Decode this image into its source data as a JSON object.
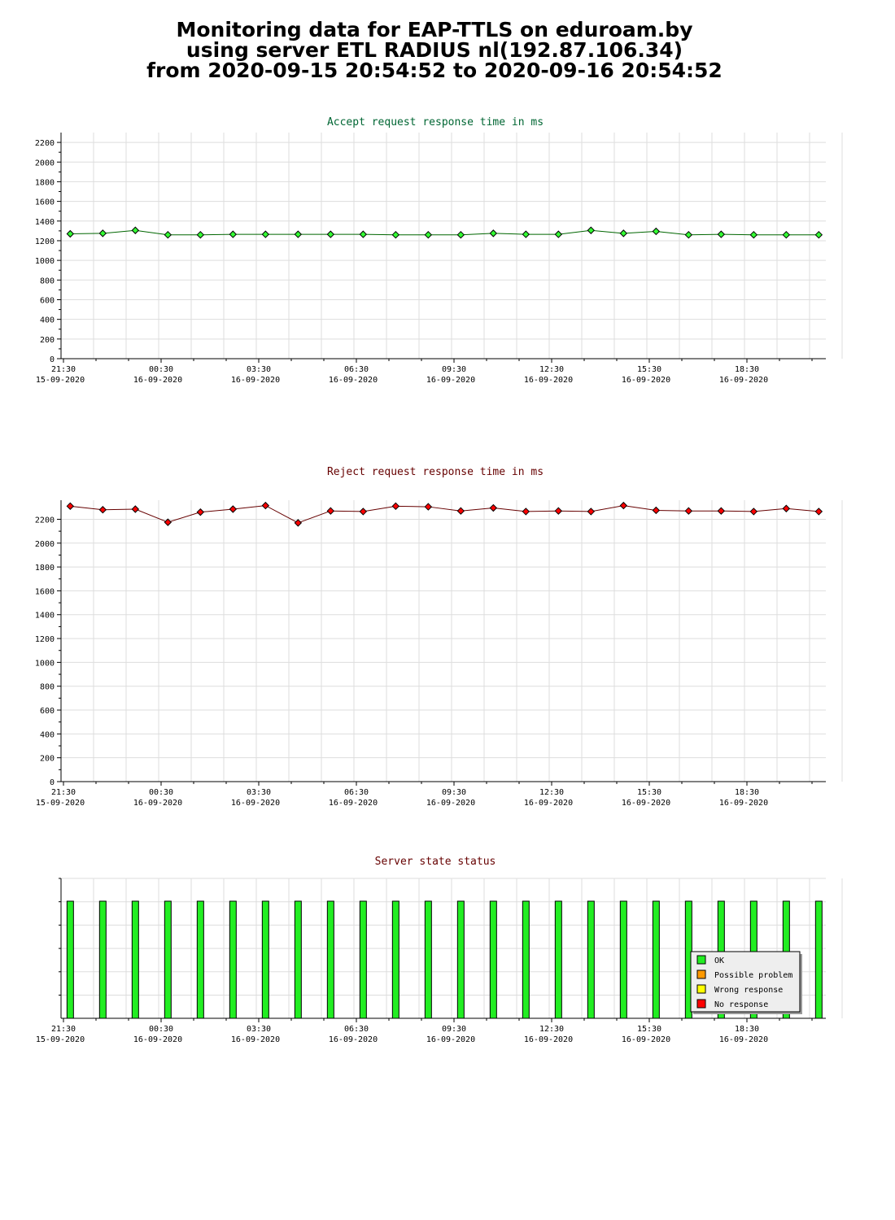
{
  "page": {
    "title_lines": [
      "Monitoring data for EAP-TTLS on eduroam.by",
      "using server ETL RADIUS nl(192.87.106.34)",
      "from 2020-09-15 20:54:52 to 2020-09-16 20:54:52"
    ]
  },
  "colors": {
    "accept_line": "#006600",
    "accept_marker": "#33ff33",
    "reject_line": "#660000",
    "reject_marker": "#ff0000",
    "grid": "#dddddd",
    "ok": "#22ee22",
    "possible_problem": "#ff9900",
    "wrong_response": "#ffff00",
    "no_response": "#ff0000",
    "accept_title": "#006633",
    "reject_title": "#660000",
    "status_title": "#660000"
  },
  "chart_data": [
    {
      "type": "line",
      "title": "Accept request response time in ms",
      "ylim": [
        0,
        2300
      ],
      "y_ticks": [
        0,
        200,
        400,
        600,
        800,
        1000,
        1200,
        1400,
        1600,
        1800,
        2000,
        2200
      ],
      "x_tick_labels": [
        {
          "time": "21:30",
          "date": "15-09-2020"
        },
        {
          "time": "00:30",
          "date": "16-09-2020"
        },
        {
          "time": "03:30",
          "date": "16-09-2020"
        },
        {
          "time": "06:30",
          "date": "16-09-2020"
        },
        {
          "time": "09:30",
          "date": "16-09-2020"
        },
        {
          "time": "12:30",
          "date": "16-09-2020"
        },
        {
          "time": "15:30",
          "date": "16-09-2020"
        },
        {
          "time": "18:30",
          "date": "16-09-2020"
        }
      ],
      "x": [
        "21:35",
        "22:35",
        "23:35",
        "00:35",
        "01:35",
        "02:35",
        "03:35",
        "04:35",
        "05:35",
        "06:35",
        "07:35",
        "08:35",
        "09:35",
        "10:35",
        "11:35",
        "12:35",
        "13:35",
        "14:35",
        "15:35",
        "16:35",
        "17:35",
        "18:35",
        "19:35",
        "20:35"
      ],
      "values": [
        1270,
        1275,
        1305,
        1260,
        1260,
        1265,
        1265,
        1265,
        1265,
        1265,
        1260,
        1260,
        1260,
        1275,
        1265,
        1265,
        1305,
        1275,
        1295,
        1260,
        1265,
        1260,
        1260,
        1260
      ],
      "grid": true
    },
    {
      "type": "line",
      "title": "Reject request response time in ms",
      "ylim": [
        0,
        2360
      ],
      "y_ticks": [
        0,
        200,
        400,
        600,
        800,
        1000,
        1200,
        1400,
        1600,
        1800,
        2000,
        2200
      ],
      "x_tick_labels": [
        {
          "time": "21:30",
          "date": "15-09-2020"
        },
        {
          "time": "00:30",
          "date": "16-09-2020"
        },
        {
          "time": "03:30",
          "date": "16-09-2020"
        },
        {
          "time": "06:30",
          "date": "16-09-2020"
        },
        {
          "time": "09:30",
          "date": "16-09-2020"
        },
        {
          "time": "12:30",
          "date": "16-09-2020"
        },
        {
          "time": "15:30",
          "date": "16-09-2020"
        },
        {
          "time": "18:30",
          "date": "16-09-2020"
        }
      ],
      "x": [
        "21:35",
        "22:35",
        "23:35",
        "00:35",
        "01:35",
        "02:35",
        "03:35",
        "04:35",
        "05:35",
        "06:35",
        "07:35",
        "08:35",
        "09:35",
        "10:35",
        "11:35",
        "12:35",
        "13:35",
        "14:35",
        "15:35",
        "16:35",
        "17:35",
        "18:35",
        "19:35",
        "20:35"
      ],
      "values": [
        2310,
        2280,
        2285,
        2175,
        2260,
        2285,
        2315,
        2170,
        2270,
        2265,
        2310,
        2305,
        2270,
        2295,
        2265,
        2270,
        2265,
        2315,
        2275,
        2270,
        2270,
        2265,
        2290,
        2265
      ],
      "grid": true
    },
    {
      "type": "bar",
      "title": "Server state status",
      "x_tick_labels": [
        {
          "time": "21:30",
          "date": "15-09-2020"
        },
        {
          "time": "00:30",
          "date": "16-09-2020"
        },
        {
          "time": "03:30",
          "date": "16-09-2020"
        },
        {
          "time": "06:30",
          "date": "16-09-2020"
        },
        {
          "time": "09:30",
          "date": "16-09-2020"
        },
        {
          "time": "12:30",
          "date": "16-09-2020"
        },
        {
          "time": "15:30",
          "date": "16-09-2020"
        },
        {
          "time": "18:30",
          "date": "16-09-2020"
        }
      ],
      "x": [
        "21:35",
        "22:35",
        "23:35",
        "00:35",
        "01:35",
        "02:35",
        "03:35",
        "04:35",
        "05:35",
        "06:35",
        "07:35",
        "08:35",
        "09:35",
        "10:35",
        "11:35",
        "12:35",
        "13:35",
        "14:35",
        "15:35",
        "16:35",
        "17:35",
        "18:35",
        "19:35",
        "20:35"
      ],
      "status": [
        "OK",
        "OK",
        "OK",
        "OK",
        "OK",
        "OK",
        "OK",
        "OK",
        "OK",
        "OK",
        "OK",
        "OK",
        "OK",
        "OK",
        "OK",
        "OK",
        "OK",
        "OK",
        "OK",
        "OK",
        "OK",
        "OK",
        "OK",
        "OK"
      ],
      "legend": [
        {
          "label": "OK",
          "color": "#22ee22"
        },
        {
          "label": "Possible problem",
          "color": "#ff9900"
        },
        {
          "label": "Wrong response",
          "color": "#ffff00"
        },
        {
          "label": "No response",
          "color": "#ff0000"
        }
      ],
      "legend_position": "bottom-right"
    }
  ]
}
